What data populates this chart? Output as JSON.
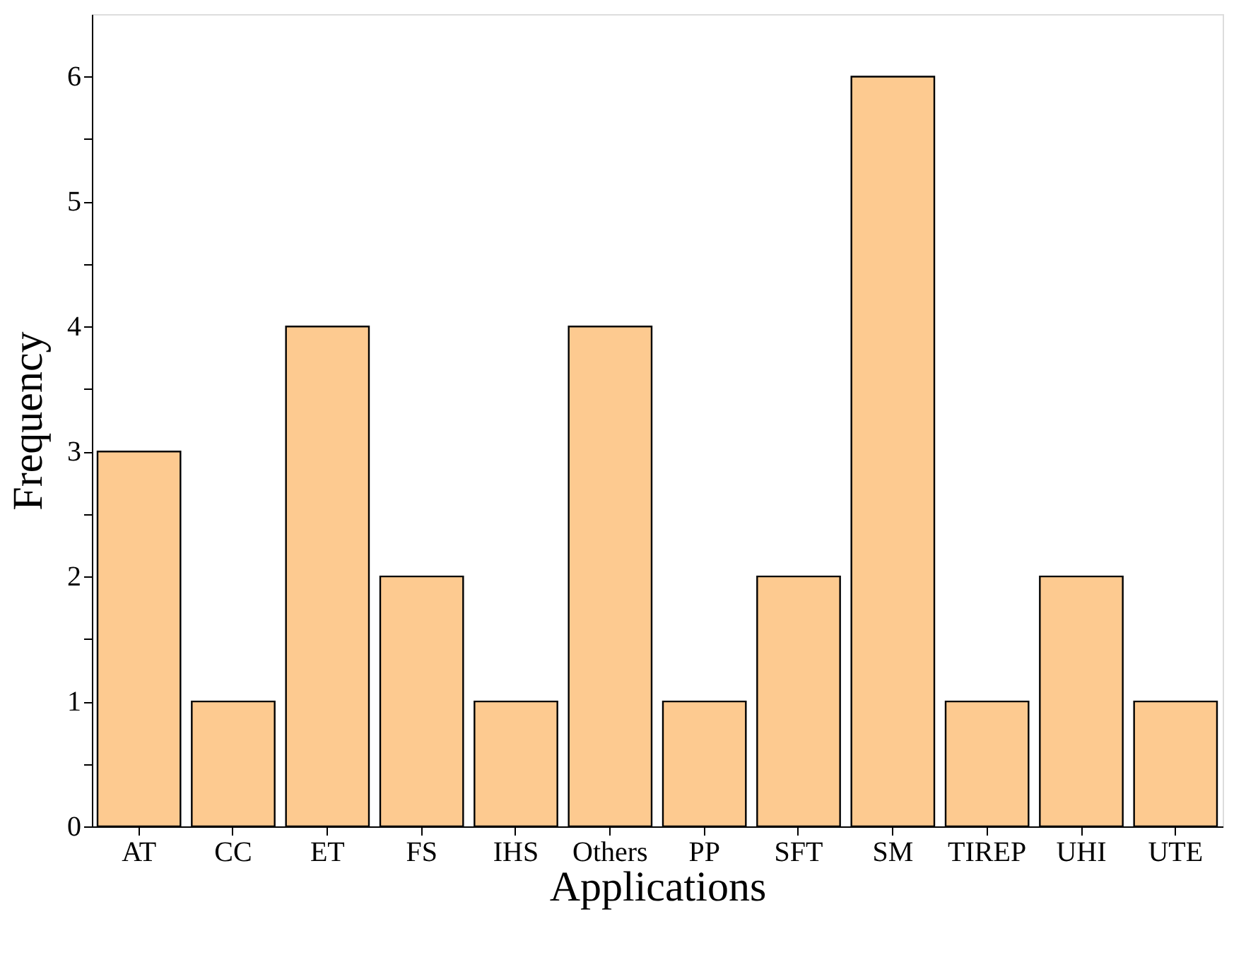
{
  "chart_data": {
    "type": "bar",
    "xlabel": "Applications",
    "ylabel": "Frequency",
    "categories": [
      "AT",
      "CC",
      "ET",
      "FS",
      "IHS",
      "Others",
      "PP",
      "SFT",
      "SM",
      "TIREP",
      "UHI",
      "UTE"
    ],
    "values": [
      3,
      1,
      4,
      2,
      1,
      4,
      1,
      2,
      6,
      1,
      2,
      1
    ],
    "color": "#fdca90",
    "ylim": [
      0,
      6.5
    ],
    "yticks": [
      0,
      {
        "value": 0.5,
        "label": null
      },
      1,
      {
        "value": 1.5,
        "label": null
      },
      2,
      {
        "value": 2.5,
        "label": null
      },
      3,
      {
        "value": 3.5,
        "label": null
      },
      4,
      {
        "value": 4.5,
        "label": null
      },
      5,
      {
        "value": 5.5,
        "label": null
      },
      6
    ],
    "grid": false
  }
}
